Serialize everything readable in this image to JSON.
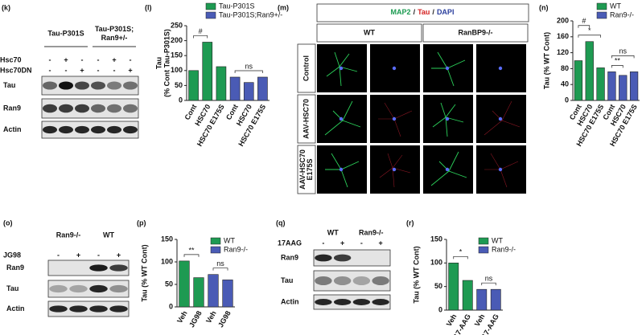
{
  "blots": [
    {
      "panel": "(k)",
      "groups": [
        "Tau-P301S",
        [
          "Tau-P301S;",
          "Ran9+/-"
        ]
      ],
      "treatments": [
        {
          "name": "Hsc70",
          "signs": [
            "-",
            "+",
            "-",
            "-",
            "+",
            "-"
          ]
        },
        {
          "name": "Hsc70DN",
          "signs": [
            "-",
            "-",
            "+",
            "-",
            "-",
            "+"
          ]
        }
      ],
      "rows": [
        "Tau",
        "Ran9",
        "Actin"
      ]
    },
    {
      "panel": "(o)",
      "groups": [
        "Ran9-/-",
        "WT"
      ],
      "treatments": [
        {
          "name": "JG98",
          "signs": [
            "-",
            "+",
            "-",
            "+"
          ]
        }
      ],
      "rows": [
        "Ran9",
        "Tau",
        "Actin"
      ]
    },
    {
      "panel": "(q)",
      "groups": [
        "WT",
        "Ran9-/-"
      ],
      "treatments": [
        {
          "name": "17AAG",
          "signs": [
            "-",
            "+",
            "-",
            "+"
          ]
        }
      ],
      "rows": [
        "Ran9",
        "Tau",
        "Actin"
      ]
    }
  ],
  "imaging": {
    "panel": "(m)",
    "title_parts": [
      "MAP2",
      "/",
      "Tau",
      "/",
      "DAPI"
    ],
    "title_colors": [
      "#1a9a50",
      "#222222",
      "#d42020",
      "#222222",
      "#2a3f9e"
    ],
    "columns": [
      "WT",
      "RanBP9-/-"
    ],
    "rows": [
      "Control",
      "AAV-HSC70",
      [
        "AAV-HSC70",
        "E175S"
      ]
    ]
  },
  "chart_data": [
    {
      "type": "bar",
      "panel": "(l)",
      "y_label": [
        "Tau",
        "(% Cont Tau-P301S)"
      ],
      "categories": [
        "Cont",
        "HSC70",
        "HSC70 E175S",
        "Cont",
        "HSC70",
        "HSC70 E175S"
      ],
      "series": [
        {
          "name": "Tau-P301S",
          "color": "#1e9a52",
          "values": [
            100,
            195,
            113,
            null,
            null,
            null
          ]
        },
        {
          "name": "Tau-P301S;Ran9+/-",
          "color": "#4a5bb5",
          "values": [
            null,
            null,
            null,
            78,
            60,
            78
          ]
        }
      ],
      "annotations": [
        "#",
        "ns"
      ],
      "ylim": [
        0,
        250
      ],
      "yticks": [
        0,
        50,
        100,
        150,
        200,
        250
      ]
    },
    {
      "type": "bar",
      "panel": "(n)",
      "y_label": "Tau (% WT Cont)",
      "categories": [
        "Cont",
        "HSC70",
        "HSC70 E175S",
        "Cont",
        "HSC70",
        "HSC70 E175S"
      ],
      "series": [
        {
          "name": "WT",
          "color": "#1e9a52",
          "values": [
            100,
            148,
            82,
            null,
            null,
            null
          ]
        },
        {
          "name": "Ran9-/-",
          "color": "#4a5bb5",
          "values": [
            null,
            null,
            null,
            72,
            63,
            72
          ]
        }
      ],
      "annotations": [
        "*",
        "#",
        "**",
        "ns"
      ],
      "ylim": [
        0,
        200
      ],
      "yticks": [
        0,
        40,
        80,
        120,
        160,
        200
      ]
    },
    {
      "type": "bar",
      "panel": "(p)",
      "y_label": "Tau (% WT Cont)",
      "categories": [
        "Veh",
        "JG98",
        "Veh",
        "JG98"
      ],
      "series": [
        {
          "name": "WT",
          "color": "#1e9a52",
          "values": [
            102,
            65,
            null,
            null
          ]
        },
        {
          "name": "Ran9-/-",
          "color": "#4a5bb5",
          "values": [
            null,
            null,
            72,
            60
          ]
        }
      ],
      "annotations": [
        "**",
        "ns"
      ],
      "ylim": [
        0,
        150
      ],
      "yticks": [
        0,
        50,
        100,
        150
      ]
    },
    {
      "type": "bar",
      "panel": "(r)",
      "y_label": "Tau (% WT Cont)",
      "categories": [
        "Veh",
        "17-AAG",
        "Veh",
        "17-AAG"
      ],
      "series": [
        {
          "name": "WT",
          "color": "#1e9a52",
          "values": [
            100,
            63,
            null,
            null
          ]
        },
        {
          "name": "Ran9-/-",
          "color": "#4a5bb5",
          "values": [
            null,
            null,
            44,
            44
          ]
        }
      ],
      "annotations": [
        "*",
        "ns"
      ],
      "ylim": [
        0,
        150
      ],
      "yticks": [
        0,
        50,
        100,
        150
      ]
    }
  ]
}
